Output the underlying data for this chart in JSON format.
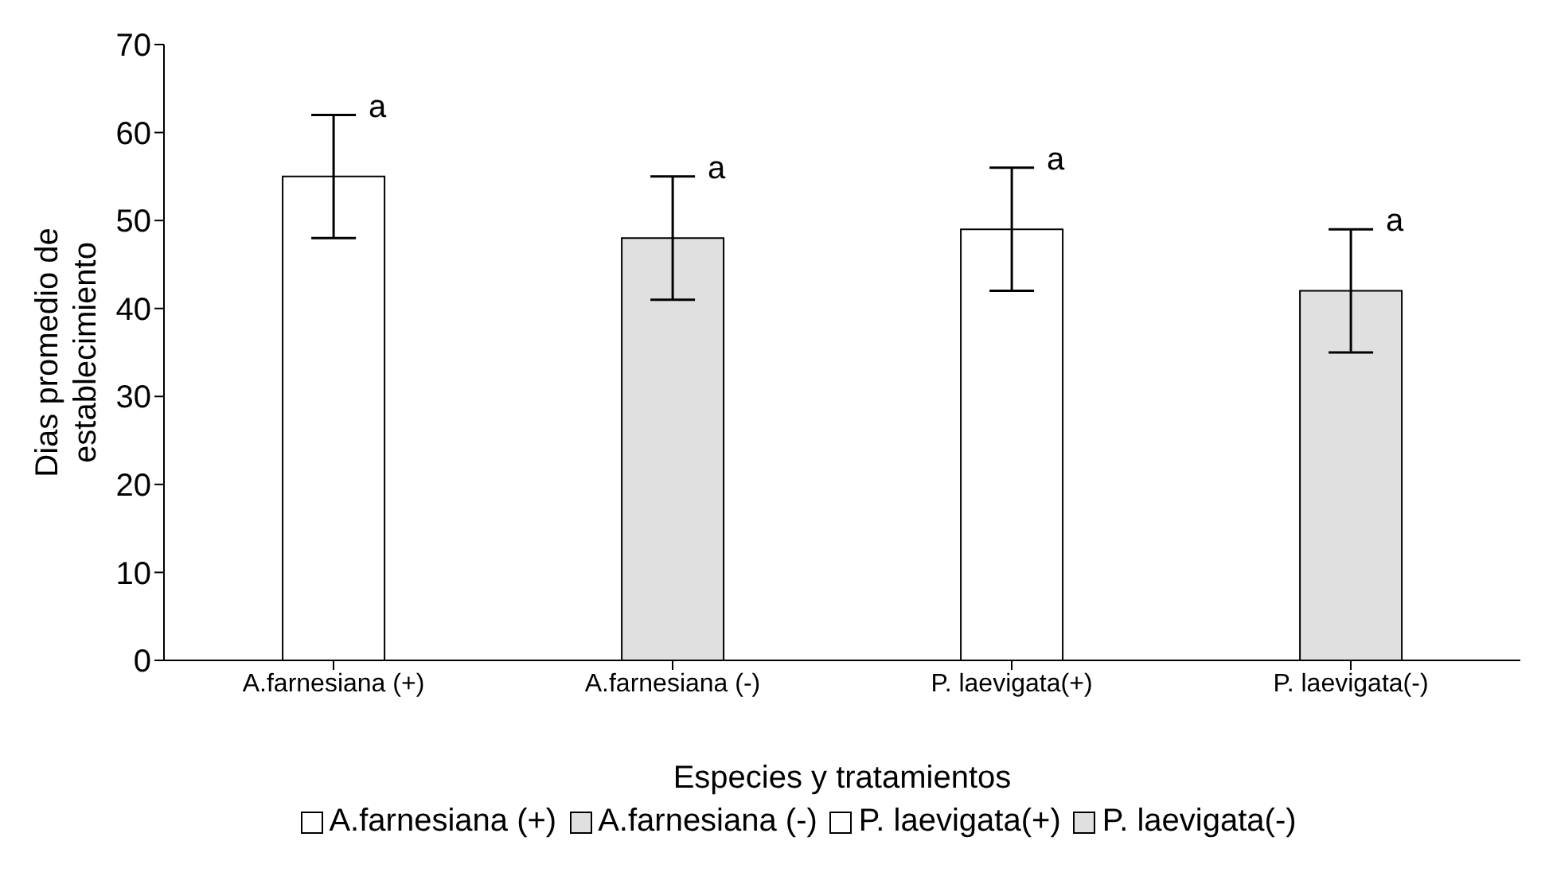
{
  "chart_data": {
    "type": "bar",
    "xlabel": "Especies  y tratamientos",
    "ylabel": "Dias promedio de establecimiento",
    "categories": [
      "A.farnesiana (+)",
      "A.farnesiana (-)",
      "P. laevigata(+)",
      "P. laevigata(-)"
    ],
    "stacked": true,
    "series": [
      {
        "name": "A.farnesiana (+)",
        "color": "#ffffff",
        "values": [
          55,
          null,
          null,
          null
        ],
        "errors": [
          7,
          null,
          null,
          null
        ]
      },
      {
        "name": "A.farnesiana (-)",
        "color": "#e0e0e0",
        "values": [
          null,
          48,
          null,
          null
        ],
        "errors": [
          null,
          7,
          null,
          null
        ]
      },
      {
        "name": "P. laevigata(+)",
        "color": "#ffffff",
        "values": [
          null,
          null,
          49,
          null
        ],
        "errors": [
          null,
          null,
          7,
          null
        ]
      },
      {
        "name": "P. laevigata(-)",
        "color": "#e0e0e0",
        "values": [
          null,
          null,
          null,
          42
        ],
        "errors": [
          null,
          null,
          null,
          7
        ]
      }
    ],
    "ylim": [
      0,
      70
    ],
    "yticks": [
      0,
      10,
      20,
      30,
      40,
      50,
      60,
      70
    ],
    "grid": false,
    "legend": "bottom",
    "annotations": [
      {
        "text": "a",
        "x": "A.farnesiana (+)",
        "y": 62
      },
      {
        "text": "a",
        "x": "A.farnesiana (-)",
        "y": 55
      },
      {
        "text": "a",
        "x": "P. laevigata(+)",
        "y": 56
      },
      {
        "text": "a",
        "x": "P. laevigata(-)",
        "y": 49
      }
    ]
  }
}
